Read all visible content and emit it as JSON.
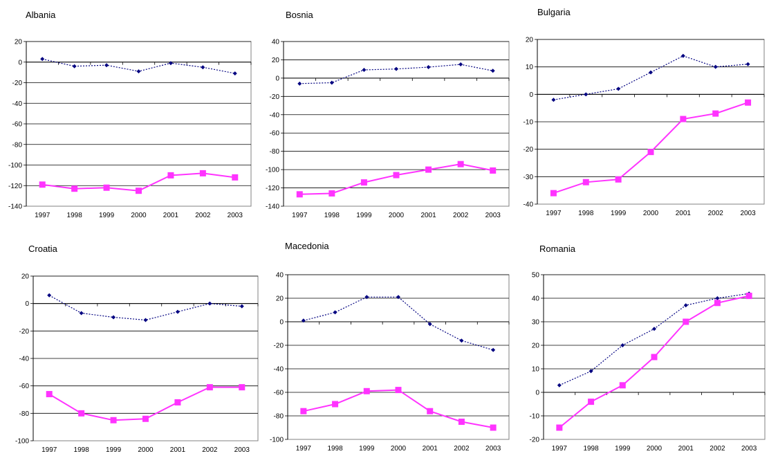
{
  "colors": {
    "series_a": "#000080",
    "series_b": "#ff33ff",
    "grid": "#000000"
  },
  "chart_data": [
    {
      "type": "line",
      "title": "Albania",
      "x": [
        "1997",
        "1998",
        "1999",
        "2000",
        "2001",
        "2002",
        "2003"
      ],
      "ylim": [
        -140,
        20
      ],
      "yticks": [
        20,
        0,
        -20,
        -40,
        -60,
        -80,
        -100,
        -120,
        -140
      ],
      "grid": true,
      "series": [
        {
          "style": "dotted-diamond",
          "values": [
            3,
            -4,
            -3,
            -9,
            -1,
            -5,
            -11
          ]
        },
        {
          "style": "solid-square",
          "values": [
            -119,
            -123,
            -122,
            -125,
            -110,
            -108,
            -112
          ]
        }
      ]
    },
    {
      "type": "line",
      "title": "Bosnia",
      "x": [
        "1997",
        "1998",
        "1999",
        "2000",
        "2001",
        "2002",
        "2003"
      ],
      "ylim": [
        -140,
        40
      ],
      "yticks": [
        40,
        20,
        0,
        -20,
        -40,
        -60,
        -80,
        -100,
        -120,
        -140
      ],
      "grid": true,
      "series": [
        {
          "style": "dotted-diamond",
          "values": [
            -6,
            -5,
            9,
            10,
            12,
            15,
            8
          ]
        },
        {
          "style": "solid-square",
          "values": [
            -127,
            -126,
            -114,
            -106,
            -100,
            -94,
            -101
          ]
        }
      ]
    },
    {
      "type": "line",
      "title": "Bulgaria",
      "x": [
        "1997",
        "1998",
        "1999",
        "2000",
        "2001",
        "2002",
        "2003"
      ],
      "ylim": [
        -40,
        20
      ],
      "yticks": [
        20,
        10,
        0,
        -10,
        -20,
        -30,
        -40
      ],
      "grid": true,
      "series": [
        {
          "style": "dotted-diamond",
          "values": [
            -2,
            0,
            2,
            8,
            14,
            10,
            11
          ]
        },
        {
          "style": "solid-square",
          "values": [
            -36,
            -32,
            -31,
            -21,
            -9,
            -7,
            -3
          ]
        }
      ]
    },
    {
      "type": "line",
      "title": "Croatia",
      "x": [
        "1997",
        "1998",
        "1999",
        "2000",
        "2001",
        "2002",
        "2003"
      ],
      "ylim": [
        -100,
        20
      ],
      "yticks": [
        20,
        0,
        -20,
        -40,
        -60,
        -80,
        -100
      ],
      "grid": true,
      "series": [
        {
          "style": "dotted-diamond",
          "values": [
            6,
            -7,
            -10,
            -12,
            -6,
            0,
            -2
          ]
        },
        {
          "style": "solid-square",
          "values": [
            -66,
            -80,
            -85,
            -84,
            -72,
            -61,
            -61
          ]
        }
      ]
    },
    {
      "type": "line",
      "title": "Macedonia",
      "x": [
        "1997",
        "1998",
        "1999",
        "2000",
        "2001",
        "2002",
        "2003"
      ],
      "ylim": [
        -100,
        40
      ],
      "yticks": [
        40,
        20,
        0,
        -20,
        -40,
        -60,
        -80,
        -100
      ],
      "grid": true,
      "series": [
        {
          "style": "dotted-diamond",
          "values": [
            1,
            8,
            21,
            21,
            -2,
            -16,
            -24
          ]
        },
        {
          "style": "solid-square",
          "values": [
            -76,
            -70,
            -59,
            -58,
            -76,
            -85,
            -90
          ]
        }
      ]
    },
    {
      "type": "line",
      "title": "Romania",
      "x": [
        "1997",
        "1998",
        "1999",
        "2000",
        "2001",
        "2002",
        "2003"
      ],
      "ylim": [
        -20,
        50
      ],
      "yticks": [
        50,
        40,
        30,
        20,
        10,
        0,
        -10,
        -20
      ],
      "grid": true,
      "series": [
        {
          "style": "dotted-diamond",
          "values": [
            3,
            9,
            20,
            27,
            37,
            40,
            42
          ]
        },
        {
          "style": "solid-square",
          "values": [
            -15,
            -4,
            3,
            15,
            30,
            38,
            41
          ]
        }
      ]
    }
  ]
}
